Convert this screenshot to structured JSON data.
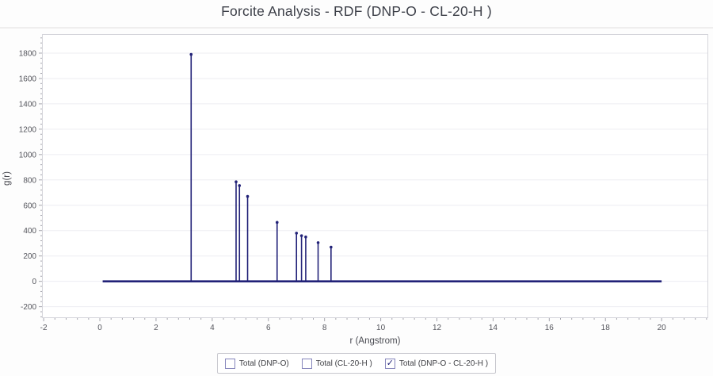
{
  "chart_data": {
    "type": "stem",
    "title": "Forcite Analysis - RDF (DNP-O - CL-20-H )",
    "xlabel": "r (Angstrom)",
    "ylabel": "g(r)",
    "xlim": [
      -2.06,
      21.66
    ],
    "ylim": [
      -290,
      1950
    ],
    "xticks": [
      -2,
      0,
      2,
      4,
      6,
      8,
      10,
      12,
      14,
      16,
      18,
      20
    ],
    "yticks": [
      -200,
      0,
      200,
      400,
      600,
      800,
      1000,
      1200,
      1400,
      1600,
      1800
    ],
    "x_minor_step": 0.4,
    "y_minor_step": 40,
    "grid": "horizontal",
    "baseline": {
      "x_start": 0.1,
      "x_end": 20.0,
      "y": 0
    },
    "series": [
      {
        "name": "Total (DNP-O - CL-20-H )",
        "points": [
          [
            3.25,
            1790
          ],
          [
            4.85,
            785
          ],
          [
            4.97,
            755
          ],
          [
            5.26,
            670
          ],
          [
            6.31,
            465
          ],
          [
            7.0,
            380
          ],
          [
            7.18,
            360
          ],
          [
            7.33,
            350
          ],
          [
            7.77,
            305
          ],
          [
            8.23,
            270
          ]
        ]
      }
    ],
    "legend": {
      "position": "bottom",
      "items": [
        {
          "label": "Total (DNP-O)",
          "checked": false
        },
        {
          "label": "Total (CL-20-H )",
          "checked": false
        },
        {
          "label": "Total (DNP-O - CL-20-H )",
          "checked": true
        }
      ]
    },
    "colors": {
      "line": "#222278",
      "grid": "#ededf2",
      "plot_border": "#d5d5db",
      "tick": "#a6a6ae",
      "tick_label": "#54555c",
      "plot_bg": "#ffffff"
    }
  }
}
